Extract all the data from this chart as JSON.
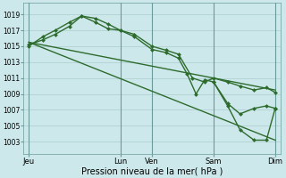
{
  "bg_color": "#cde8ea",
  "grid_color": "#aacccc",
  "line_color": "#2d6b2d",
  "xlabel": "Pression niveau de la mer( hPa )",
  "yticks": [
    1003,
    1005,
    1007,
    1009,
    1011,
    1013,
    1015,
    1017,
    1019
  ],
  "ylim": [
    1001.5,
    1020.5
  ],
  "xtick_labels": [
    "Jeu",
    "Lun",
    "Ven",
    "Sam",
    "Dim"
  ],
  "xtick_positions": [
    0,
    5.2,
    7.0,
    10.5,
    14.0
  ],
  "xlim": [
    -0.3,
    14.3
  ],
  "vlines": [
    0,
    5.2,
    7.0,
    10.5,
    14.0
  ],
  "series1_x": [
    0,
    0.8,
    1.5,
    2.3,
    3.0,
    3.8,
    4.5,
    5.2,
    6.0,
    7.0,
    7.8,
    8.5,
    9.3,
    10.0,
    10.5,
    11.3,
    12.0,
    12.8,
    13.5,
    14.0
  ],
  "series1_y": [
    1015.0,
    1016.2,
    1017.0,
    1018.0,
    1018.8,
    1018.5,
    1017.8,
    1017.0,
    1016.5,
    1015.0,
    1014.5,
    1014.0,
    1011.0,
    1010.5,
    1011.0,
    1010.5,
    1010.0,
    1009.5,
    1009.8,
    1009.2
  ],
  "series2_x": [
    0,
    0.8,
    1.5,
    2.3,
    3.0,
    3.8,
    4.5,
    5.2,
    6.0,
    7.0,
    7.8,
    8.5,
    9.0,
    9.5,
    10.0,
    10.5,
    11.3,
    12.0,
    12.8,
    13.5,
    14.0
  ],
  "series2_y": [
    1015.2,
    1015.8,
    1016.5,
    1017.5,
    1018.8,
    1018.0,
    1017.2,
    1017.0,
    1016.2,
    1014.6,
    1014.2,
    1013.5,
    1011.5,
    1009.0,
    1010.8,
    1010.5,
    1007.8,
    1006.5,
    1007.2,
    1007.5,
    1007.2
  ],
  "series3_x": [
    0,
    14.0
  ],
  "series3_y": [
    1015.5,
    1009.5
  ],
  "series4_x": [
    0,
    14.0
  ],
  "series4_y": [
    1015.5,
    1003.2
  ],
  "series5_x": [
    10.5,
    11.3,
    12.0,
    12.8,
    13.5,
    14.0
  ],
  "series5_y": [
    1010.5,
    1007.5,
    1004.5,
    1003.2,
    1003.2,
    1007.2
  ]
}
